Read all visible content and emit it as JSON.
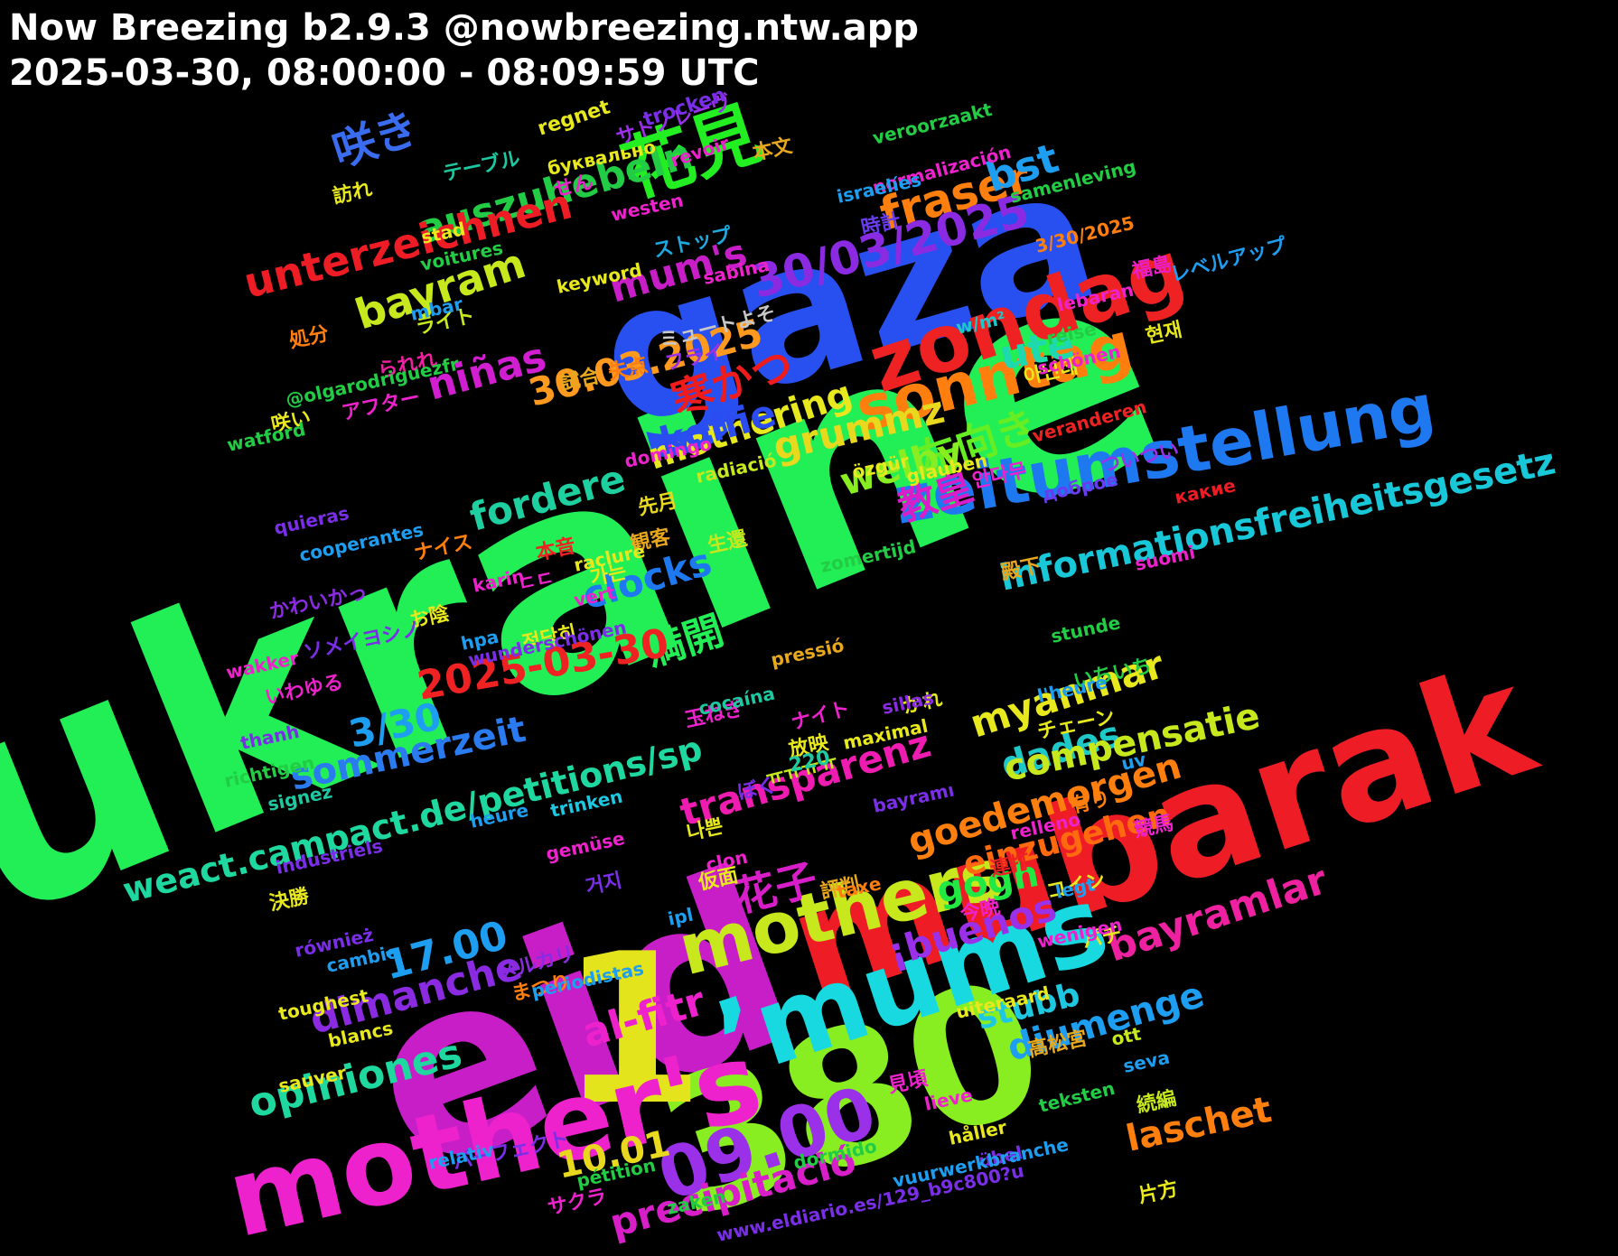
{
  "header": {
    "title": "Now Breezing b2.9.3 @nowbreezing.ntw.app",
    "range": "2025-03-30, 08:00:00 - 08:09:59 UTC"
  },
  "words": [
    {
      "t": "ukraine",
      "c": "#22ee55"
    },
    {
      "t": "eid",
      "c": "#c81ec8"
    },
    {
      "t": "gaza",
      "c": "#2850f0"
    },
    {
      "t": "mubarak",
      "c": "#ee1c24"
    },
    {
      "t": "380",
      "c": "#88ee22"
    },
    {
      "t": "1",
      "c": "#e4e41c"
    },
    {
      "t": "mother's",
      "c": "#ee22cc"
    },
    {
      "t": "’mums",
      "c": "#18d8e0"
    },
    {
      "t": "花見",
      "c": "#22ee22"
    },
    {
      "t": "zondag",
      "c": "#ee2222"
    },
    {
      "t": "zeitumstellung",
      "c": "#1e78f0"
    },
    {
      "t": "sonntag",
      "c": "#ff7f0e"
    },
    {
      "t": "mothers",
      "c": "#c8e81e"
    },
    {
      "t": "09.00",
      "c": "#9a30e8"
    },
    {
      "t": "咲き",
      "c": "#3a6cf0"
    },
    {
      "t": "fraser",
      "c": "#ff7f0e"
    },
    {
      "t": "auszuhebeln",
      "c": "#22cc44"
    },
    {
      "t": "bst",
      "c": "#1e9ef0"
    },
    {
      "t": "30/03/2025",
      "c": "#8a2be2"
    },
    {
      "t": "unterzeichnen",
      "c": "#ee1c24"
    },
    {
      "t": "mum's",
      "c": "#c81ec8"
    },
    {
      "t": "bayram",
      "c": "#c8e81e"
    },
    {
      "t": "30.03.2025",
      "c": "#ff9a1e"
    },
    {
      "t": "mothering",
      "c": "#e8e81e"
    },
    {
      "t": "niñas",
      "c": "#d01ed0"
    },
    {
      "t": "ute",
      "c": "#1ed8b0"
    },
    {
      "t": "寒かつ",
      "c": "#ee1c1c"
    },
    {
      "t": "koffie",
      "c": "#2a4cf0"
    },
    {
      "t": "左向き",
      "c": "#66ee22"
    },
    {
      "t": "grummz",
      "c": "#e8d81e"
    },
    {
      "t": "教皇",
      "c": "#d81ec8"
    },
    {
      "t": "welby",
      "c": "#88ee22"
    },
    {
      "t": "fordere",
      "c": "#1ed0a0"
    },
    {
      "t": "informationsfreiheitsgesetz",
      "c": "#18c8d8"
    },
    {
      "t": "clocks",
      "c": "#1e78f0"
    },
    {
      "t": "満開",
      "c": "#22ee55"
    },
    {
      "t": "2025-03-30",
      "c": "#ee2222"
    },
    {
      "t": "myanmar",
      "c": "#e8e81e"
    },
    {
      "t": "sommerzeit",
      "c": "#2a7af0"
    },
    {
      "t": "dades",
      "c": "#1ec8c8"
    },
    {
      "t": "compensatie",
      "c": "#c8e81e"
    },
    {
      "t": "3/30",
      "c": "#1e9ef0"
    },
    {
      "t": "weact.campact.de/petitions/sp",
      "c": "#1ed8a0"
    },
    {
      "t": "transparenz",
      "c": "#ee1cb0"
    },
    {
      "t": "goedemorgen",
      "c": "#ff7f0e"
    },
    {
      "t": "einzugehen",
      "c": "#ff6a0e"
    },
    {
      "t": "gogh",
      "c": "#22e844"
    },
    {
      "t": "花子",
      "c": "#d81ec8"
    },
    {
      "t": "¡buenos",
      "c": "#9a30e8"
    },
    {
      "t": "bayramlar",
      "c": "#ee22a0"
    },
    {
      "t": "17.00",
      "c": "#1e9ef0"
    },
    {
      "t": "al-fitr",
      "c": "#ee22cc"
    },
    {
      "t": "stubb",
      "c": "#1ec8e0"
    },
    {
      "t": "dimanche",
      "c": "#8a2be2"
    },
    {
      "t": "diumenge",
      "c": "#1e9ef0"
    },
    {
      "t": "opiniones",
      "c": "#1ed8a0"
    },
    {
      "t": "10.01",
      "c": "#e8d81e"
    },
    {
      "t": "laschet",
      "c": "#ff7f0e"
    },
    {
      "t": "precipitació",
      "c": "#d81ec8"
    },
    {
      "t": "サトノレーヴ",
      "c": "#9a30e8"
    },
    {
      "t": "本文",
      "c": "#e8a81e"
    },
    {
      "t": "テーブル",
      "c": "#1ec8a0"
    },
    {
      "t": "せん",
      "c": "#ee22cc"
    },
    {
      "t": "訪れ",
      "c": "#e8e81e"
    },
    {
      "t": "時計",
      "c": "#6a3cf0"
    },
    {
      "t": "ストップ",
      "c": "#1ea8e0"
    },
    {
      "t": "福島",
      "c": "#e81ec8"
    },
    {
      "t": "レベルアップ",
      "c": "#1e9ef0"
    },
    {
      "t": "ライト",
      "c": "#c8e81e"
    },
    {
      "t": "処分",
      "c": "#ff7f0e"
    },
    {
      "t": "ミュートよそ",
      "c": "#c8c8c8"
    },
    {
      "t": "失点",
      "c": "#ff7f0e"
    },
    {
      "t": "フライ",
      "c": "#9a30e8"
    },
    {
      "t": "られれ",
      "c": "#ee22a0"
    },
    {
      "t": "試合",
      "c": "#e8a81e"
    },
    {
      "t": "アフター",
      "c": "#ee22cc"
    },
    {
      "t": "咲い",
      "c": "#e8e81e"
    },
    {
      "t": "ついつい",
      "c": "#9a30e8"
    },
    {
      "t": "先月",
      "c": "#e8d81e"
    },
    {
      "t": "観客",
      "c": "#e8a81e"
    },
    {
      "t": "本音",
      "c": "#ee2222"
    },
    {
      "t": "生還",
      "c": "#c8e81e"
    },
    {
      "t": "ナイス",
      "c": "#ff7f0e"
    },
    {
      "t": "ㄷㄷ",
      "c": "#ee22cc"
    },
    {
      "t": "殿下",
      "c": "#e8a81e"
    },
    {
      "t": "かわいかっ",
      "c": "#8a2be2"
    },
    {
      "t": "お陰",
      "c": "#e8e81e"
    },
    {
      "t": "ソメイヨシノ",
      "c": "#7a2ee8"
    },
    {
      "t": "いわゆる",
      "c": "#ee22cc"
    },
    {
      "t": "いちいち",
      "c": "#22cc44"
    },
    {
      "t": "かれ",
      "c": "#e8e81e"
    },
    {
      "t": "玉ねぎ",
      "c": "#ee22cc"
    },
    {
      "t": "放映",
      "c": "#e8e81e"
    },
    {
      "t": "ナイト",
      "c": "#ee22cc"
    },
    {
      "t": "チェーン",
      "c": "#e8e81e"
    },
    {
      "t": "ぼく",
      "c": "#7a2ee8"
    },
    {
      "t": "有り",
      "c": "#ff7f0e"
    },
    {
      "t": "競馬",
      "c": "#ee22cc"
    },
    {
      "t": "仮面",
      "c": "#e8e81e"
    },
    {
      "t": "連打",
      "c": "#ee2222"
    },
    {
      "t": "評判",
      "c": "#e8a81e"
    },
    {
      "t": "コイン",
      "c": "#e8e81e"
    },
    {
      "t": "決勝",
      "c": "#e8e81e"
    },
    {
      "t": "今晩",
      "c": "#ee22cc"
    },
    {
      "t": "メルカリ",
      "c": "#8a2be2"
    },
    {
      "t": "パチ",
      "c": "#e8e81e"
    },
    {
      "t": "まつり",
      "c": "#ff7f0e"
    },
    {
      "t": "高松宮",
      "c": "#e8a81e"
    },
    {
      "t": "見頃",
      "c": "#ee22cc"
    },
    {
      "t": "続編",
      "c": "#c8e81e"
    },
    {
      "t": "パーフェクト",
      "c": "#7a2ee8"
    },
    {
      "t": "サクラ",
      "c": "#ee22cc"
    },
    {
      "t": "片方",
      "c": "#e8e81e"
    },
    {
      "t": "ㅠㅠㅠㅠ",
      "c": "#c8e81e"
    },
    {
      "t": "220",
      "c": "#1ec8a0"
    },
    {
      "t": "현재",
      "c": "#e8e81e"
    },
    {
      "t": "아닌데",
      "c": "#e8e81e"
    },
    {
      "t": "안다무",
      "c": "#ee22cc"
    },
    {
      "t": "가는",
      "c": "#e8e81e"
    },
    {
      "t": "적당히",
      "c": "#e8e81e"
    },
    {
      "t": "나쁜",
      "c": "#e8e81e"
    },
    {
      "t": "거지",
      "c": "#7a2ee8"
    },
    {
      "t": "3/30/2025",
      "c": "#ff7f0e"
    },
    {
      "t": "буквально",
      "c": "#e8e81e"
    },
    {
      "t": "доброе",
      "c": "#6a3cf0"
    },
    {
      "t": "какие",
      "c": "#ee1c24"
    },
    {
      "t": "trocken",
      "c": "#7a2ee8"
    },
    {
      "t": "regnet",
      "c": "#e8e81e"
    },
    {
      "t": "revoir",
      "c": "#ee22cc"
    },
    {
      "t": "veroorzaakt",
      "c": "#22cc44"
    },
    {
      "t": "normalización",
      "c": "#ee22cc"
    },
    {
      "t": "israelíes",
      "c": "#1e9ef0"
    },
    {
      "t": "samenleving",
      "c": "#22cc44"
    },
    {
      "t": "westen",
      "c": "#ee22cc"
    },
    {
      "t": "stad",
      "c": "#e8e81e"
    },
    {
      "t": "voitures",
      "c": "#22cc44"
    },
    {
      "t": "keyword",
      "c": "#e8e81e"
    },
    {
      "t": "sabina",
      "c": "#ee22cc"
    },
    {
      "t": "lebaran",
      "c": "#ee22cc"
    },
    {
      "t": "mbar",
      "c": "#1e9ef0"
    },
    {
      "t": "w/m²",
      "c": "#1ec8c8"
    },
    {
      "t": "reise",
      "c": "#22cc44"
    },
    {
      "t": "@olgarodriguezfr",
      "c": "#22cc44"
    },
    {
      "t": "schönen",
      "c": "#ee22cc"
    },
    {
      "t": "veranderen",
      "c": "#ee2222"
    },
    {
      "t": "watford",
      "c": "#22cc44"
    },
    {
      "t": "domingo",
      "c": "#ee22cc"
    },
    {
      "t": "radiació",
      "c": "#c8e81e"
    },
    {
      "t": "özgür",
      "c": "#e8e81e"
    },
    {
      "t": "glauben",
      "c": "#e8e81e"
    },
    {
      "t": "quieras",
      "c": "#7a2ee8"
    },
    {
      "t": "cooperantes",
      "c": "#1e9ef0"
    },
    {
      "t": "raclure",
      "c": "#e8e81e"
    },
    {
      "t": "zomertijd",
      "c": "#22cc44"
    },
    {
      "t": "suomi",
      "c": "#ee22cc"
    },
    {
      "t": "karin",
      "c": "#ee22cc"
    },
    {
      "t": "vert",
      "c": "#ee22cc"
    },
    {
      "t": "hpa",
      "c": "#1e9ef0"
    },
    {
      "t": "wunderschönen",
      "c": "#7a2ee8"
    },
    {
      "t": "pressió",
      "c": "#e8a81e"
    },
    {
      "t": "stunde",
      "c": "#22cc44"
    },
    {
      "t": "wakker",
      "c": "#ee22cc"
    },
    {
      "t": "l'heure",
      "c": "#1e9ef0"
    },
    {
      "t": "sillas",
      "c": "#8a2be2"
    },
    {
      "t": "cocaína",
      "c": "#1ec8a0"
    },
    {
      "t": "thanh",
      "c": "#7a2ee8"
    },
    {
      "t": "maximal",
      "c": "#e8e81e"
    },
    {
      "t": "richtigen",
      "c": "#22cc44"
    },
    {
      "t": "uv",
      "c": "#1e9ef0"
    },
    {
      "t": "signez",
      "c": "#1ec8a0"
    },
    {
      "t": "trinken",
      "c": "#1ec8e0"
    },
    {
      "t": "bayramı",
      "c": "#7a2ee8"
    },
    {
      "t": "heure",
      "c": "#1e9ef0"
    },
    {
      "t": "relleno",
      "c": "#ee22cc"
    },
    {
      "t": "gemüse",
      "c": "#ee22cc"
    },
    {
      "t": "industriels",
      "c": "#7a2ee8"
    },
    {
      "t": "clon",
      "c": "#ee22cc"
    },
    {
      "t": "taxe",
      "c": "#ff7f0e"
    },
    {
      "t": "legt",
      "c": "#1e9ef0"
    },
    {
      "t": "ipl",
      "c": "#1e9ef0"
    },
    {
      "t": "również",
      "c": "#7a2ee8"
    },
    {
      "t": "wenigen",
      "c": "#ee22cc"
    },
    {
      "t": "cambio",
      "c": "#1e9ef0"
    },
    {
      "t": "periodistas",
      "c": "#1e9ef0"
    },
    {
      "t": "toughest",
      "c": "#e8e81e"
    },
    {
      "t": "uiteraard",
      "c": "#e8e81e"
    },
    {
      "t": "blancs",
      "c": "#e8e81e"
    },
    {
      "t": "ott",
      "c": "#c8e81e"
    },
    {
      "t": "seva",
      "c": "#1e9ef0"
    },
    {
      "t": "sauver",
      "c": "#e8e81e"
    },
    {
      "t": "teksten",
      "c": "#22cc44"
    },
    {
      "t": "lieve",
      "c": "#ee22cc"
    },
    {
      "t": "håller",
      "c": "#e8e81e"
    },
    {
      "t": "übel",
      "c": "#7a2ee8"
    },
    {
      "t": "relativ",
      "c": "#1e9ef0"
    },
    {
      "t": "dormido",
      "c": "#22cc44"
    },
    {
      "t": "pétition",
      "c": "#22cc44"
    },
    {
      "t": "vuurwerkbranche",
      "c": "#1e9ef0"
    },
    {
      "t": "zaken",
      "c": "#22cc44"
    },
    {
      "t": "www.eldiario.es/129_b9c800?u",
      "c": "#7a2ee8"
    }
  ]
}
